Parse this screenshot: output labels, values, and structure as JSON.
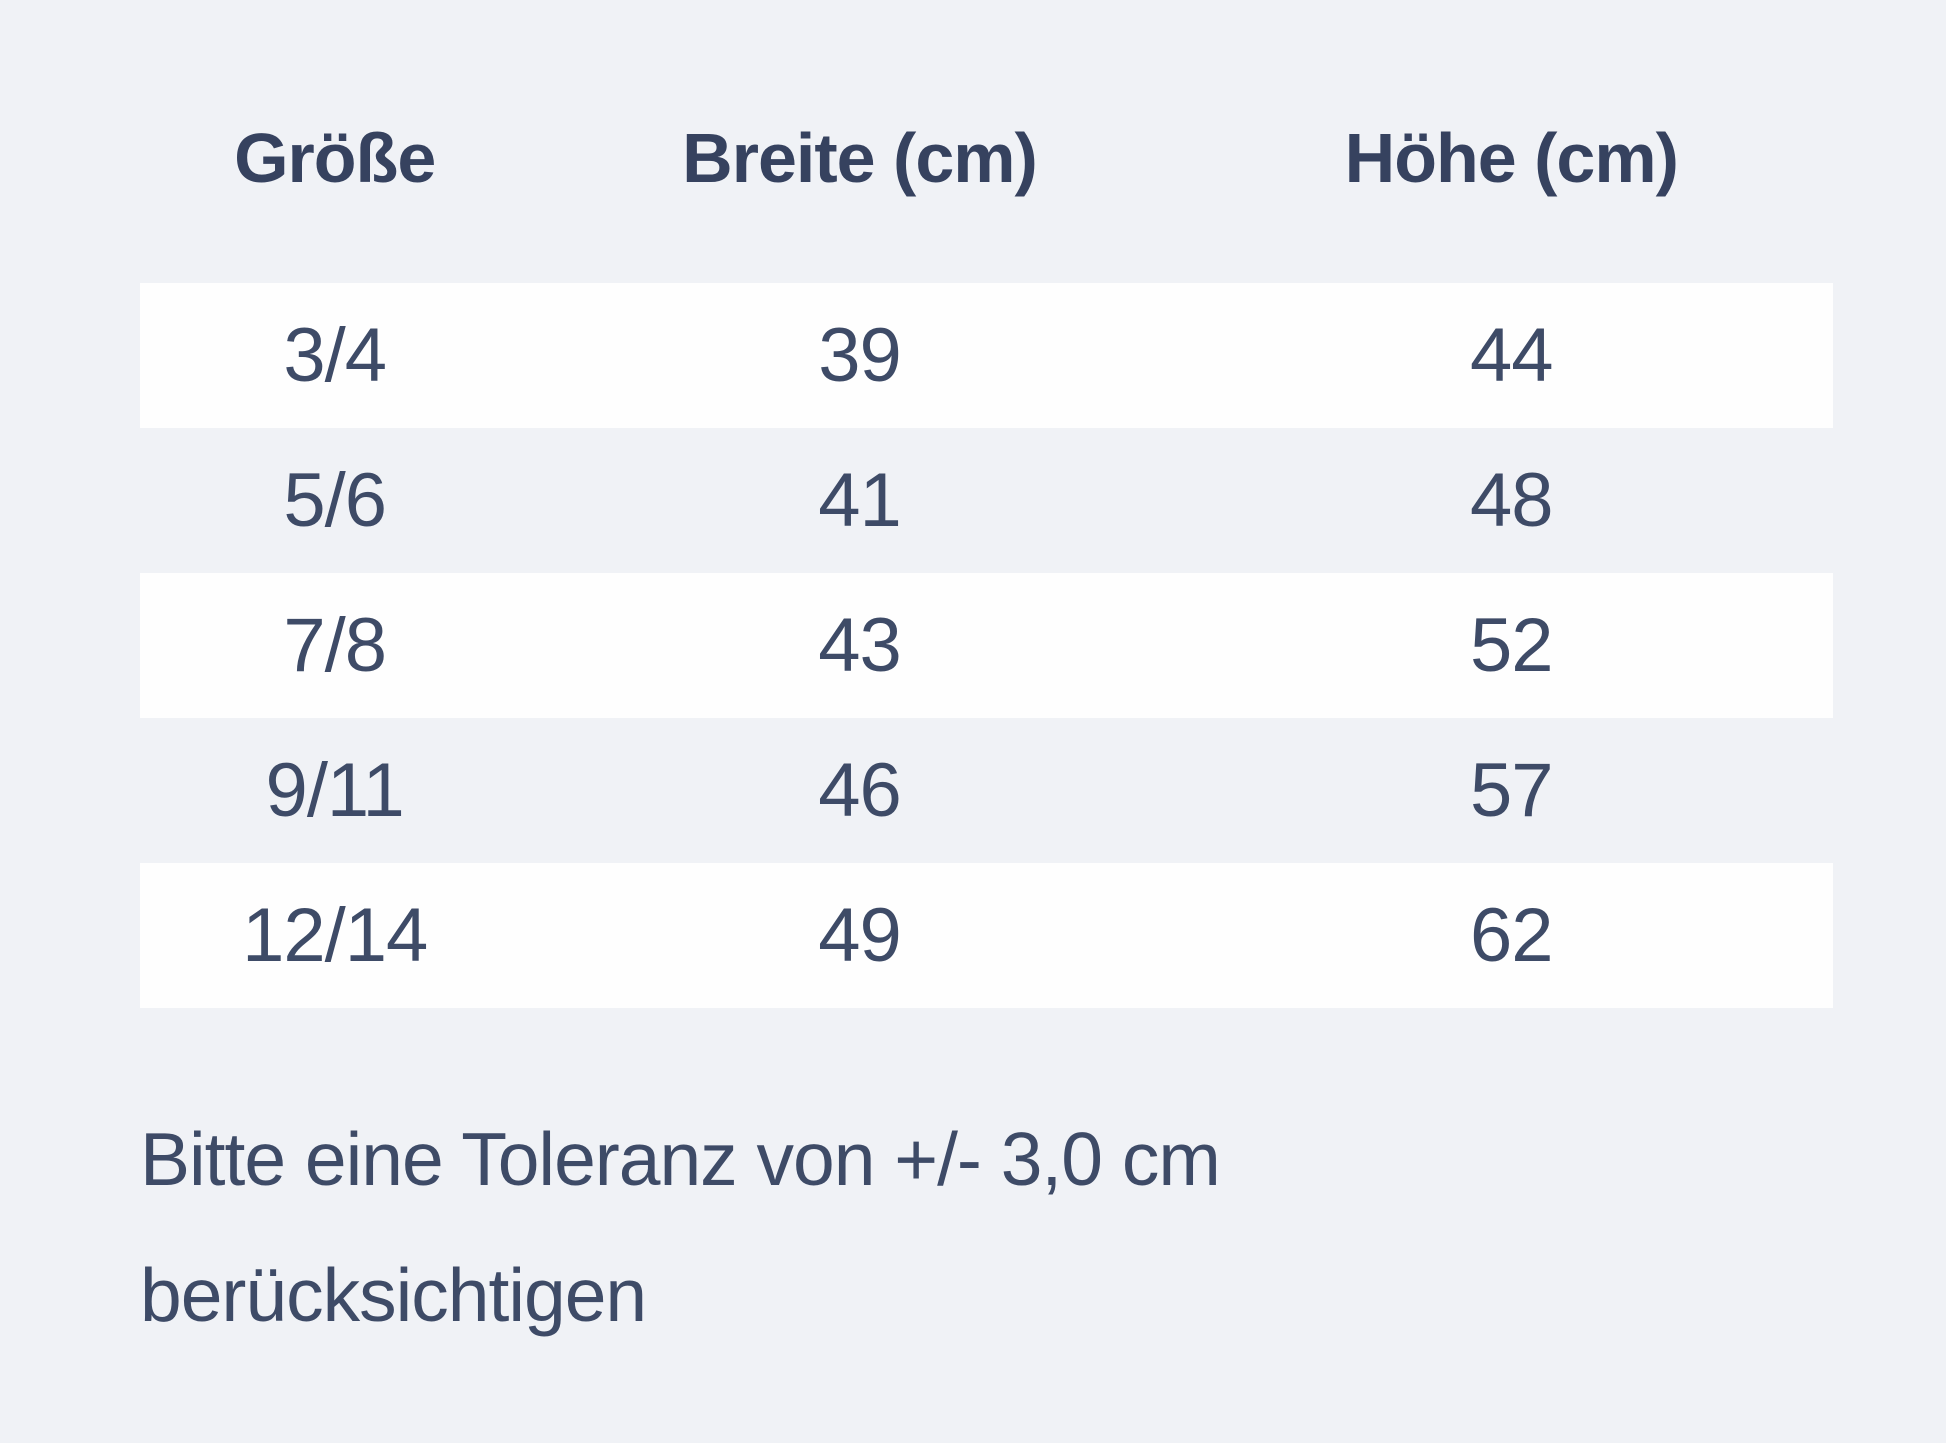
{
  "chart_data": {
    "type": "table",
    "columns": [
      "Größe",
      "Breite (cm)",
      "Höhe (cm)"
    ],
    "rows": [
      [
        "3/4",
        "39",
        "44"
      ],
      [
        "5/6",
        "41",
        "48"
      ],
      [
        "7/8",
        "43",
        "52"
      ],
      [
        "9/11",
        "46",
        "57"
      ],
      [
        "12/14",
        "49",
        "62"
      ]
    ],
    "layout": "odd data rows have white background stripes on light blue-gray page background; all cells center-aligned; no grid lines"
  },
  "note": {
    "line1": "Bitte eine Toleranz von +/- 3,0 cm",
    "line2": "berücksichtigen"
  },
  "colors": {
    "page_background": "#f0f2f6",
    "striped_row_background": "#fefefe",
    "header_text": "#36425f",
    "body_text": "#3e4b67"
  }
}
